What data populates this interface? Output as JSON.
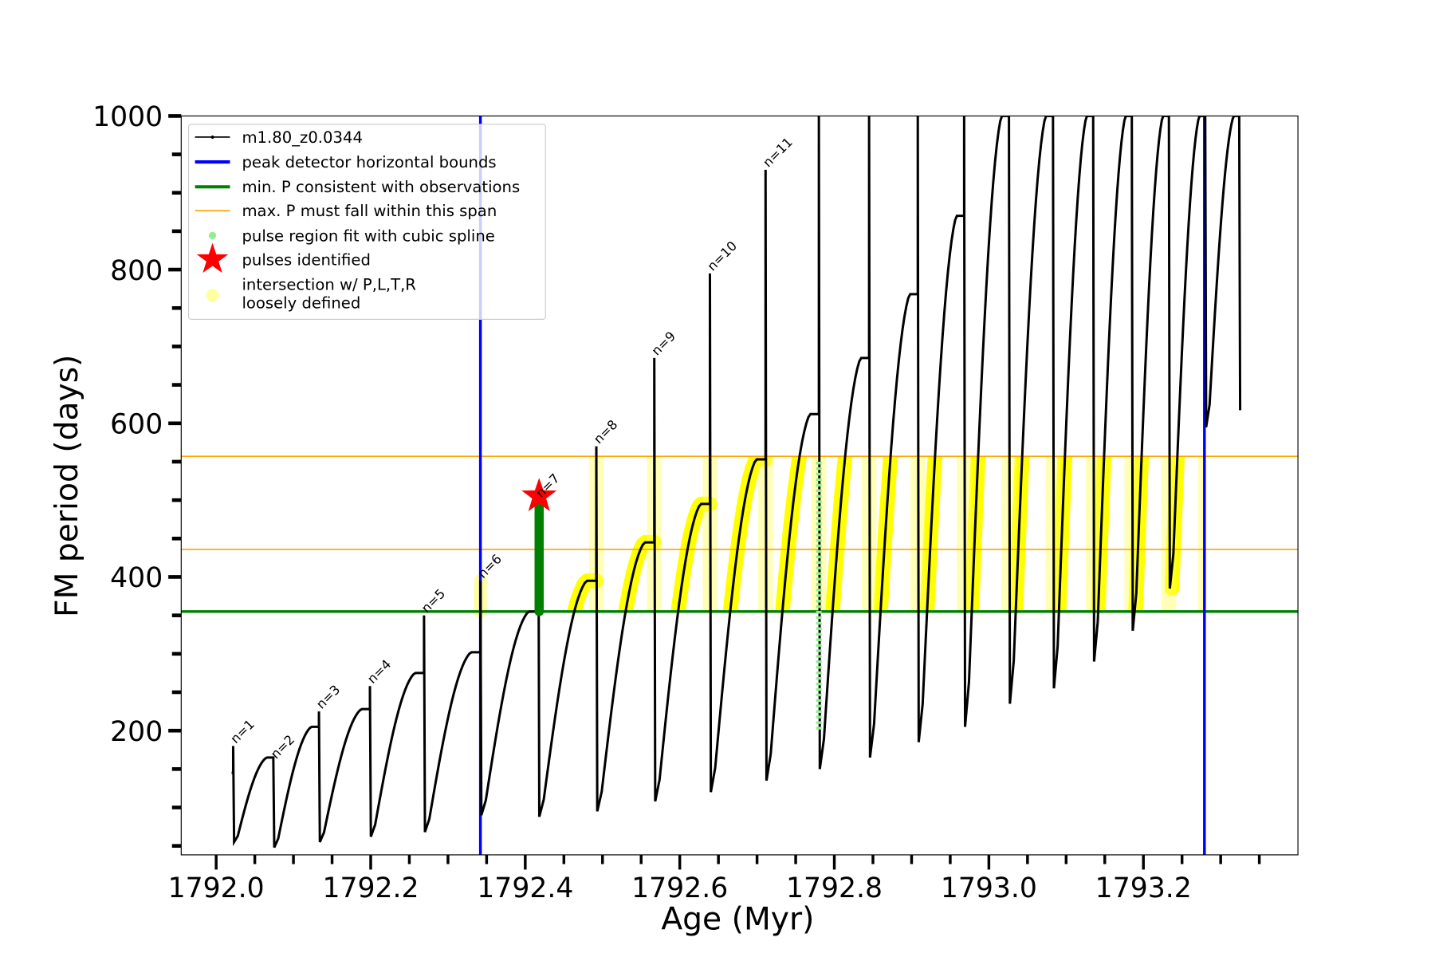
{
  "chart_data": {
    "type": "line",
    "title": "",
    "xlabel": "Age (Myr)",
    "ylabel": "FM period (days)",
    "xlim": [
      1791.955,
      1793.4
    ],
    "ylim": [
      38,
      1000
    ],
    "xticks": [
      "1792.0",
      "1792.2",
      "1792.4",
      "1792.6",
      "1792.8",
      "1793.0",
      "1793.2"
    ],
    "xtick_values": [
      1792.0,
      1792.2,
      1792.4,
      1792.6,
      1792.8,
      1793.0,
      1793.2
    ],
    "yticks": [
      "200",
      "400",
      "600",
      "800",
      "1000"
    ],
    "ytick_values": [
      200,
      400,
      600,
      800,
      1000
    ],
    "grid": false,
    "legend_placement": "top-left",
    "legend": [
      {
        "label": "m1.80_z0.0344",
        "color": "#000000",
        "kind": "line-marker"
      },
      {
        "label": "peak detector horizontal bounds",
        "color": "#0000ff",
        "kind": "thick-line"
      },
      {
        "label": "min. P consistent with observations",
        "color": "#008000",
        "kind": "thick-line"
      },
      {
        "label": "max. P must fall within this span",
        "color": "#ffa500",
        "kind": "thin-line"
      },
      {
        "label": "pulse region fit with cubic spline",
        "color": "#90ee90",
        "kind": "dot"
      },
      {
        "label": "pulses identified",
        "color": "#ff0000",
        "kind": "star"
      },
      {
        "label": "intersection w/ P,L,T,R",
        "label2": "loosely defined",
        "color": "#ffffa0",
        "kind": "circle"
      }
    ],
    "series_name": "m1.80_z0.0344",
    "start": {
      "age": 1792.02,
      "period": 145
    },
    "pulses": [
      {
        "age": 1792.022,
        "peak": 145,
        "spike": 180,
        "min": 55,
        "label": "n=1"
      },
      {
        "age": 1792.074,
        "peak": 165,
        "spike": 160,
        "min": 48,
        "label": "n=2"
      },
      {
        "age": 1792.133,
        "peak": 205,
        "spike": 225,
        "min": 55,
        "label": "n=3"
      },
      {
        "age": 1792.199,
        "peak": 228,
        "spike": 258,
        "min": 62,
        "label": "n=4"
      },
      {
        "age": 1792.269,
        "peak": 275,
        "spike": 350,
        "min": 68,
        "label": "n=5"
      },
      {
        "age": 1792.342,
        "peak": 302,
        "spike": 395,
        "min": 90,
        "label": "n=6"
      },
      {
        "age": 1792.417,
        "peak": 355,
        "spike": 500,
        "min": 88,
        "label": "n=7"
      },
      {
        "age": 1792.492,
        "peak": 395,
        "spike": 570,
        "min": 95,
        "label": "n=8"
      },
      {
        "age": 1792.567,
        "peak": 445,
        "spike": 685,
        "min": 108,
        "label": "n=9"
      },
      {
        "age": 1792.639,
        "peak": 495,
        "spike": 795,
        "min": 120,
        "label": "n=10"
      },
      {
        "age": 1792.711,
        "peak": 553,
        "spike": 930,
        "min": 135,
        "label": "n=11"
      },
      {
        "age": 1792.78,
        "peak": 612,
        "spike": 1000,
        "min": 150,
        "label": ""
      },
      {
        "age": 1792.845,
        "peak": 685,
        "spike": 1000,
        "min": 165,
        "label": ""
      },
      {
        "age": 1792.908,
        "peak": 768,
        "spike": 1000,
        "min": 185,
        "label": ""
      },
      {
        "age": 1792.968,
        "peak": 870,
        "spike": 1000,
        "min": 205,
        "label": ""
      },
      {
        "age": 1793.026,
        "peak": 1000,
        "spike": 1000,
        "min": 235,
        "label": ""
      },
      {
        "age": 1793.083,
        "peak": 1000,
        "spike": 1000,
        "min": 255,
        "label": ""
      },
      {
        "age": 1793.135,
        "peak": 1000,
        "spike": 1000,
        "min": 290,
        "label": ""
      },
      {
        "age": 1793.185,
        "peak": 1000,
        "spike": 1000,
        "min": 330,
        "label": ""
      },
      {
        "age": 1793.233,
        "peak": 1000,
        "spike": 1000,
        "min": 385,
        "label": ""
      },
      {
        "age": 1793.28,
        "peak": 1000,
        "spike": 1000,
        "min": 595,
        "label": ""
      },
      {
        "age": 1793.324,
        "peak": 1000,
        "spike": 1000,
        "min": 617,
        "label": ""
      }
    ],
    "vertical_bounds": [
      1792.342,
      1793.279
    ],
    "min_P_line": 355,
    "max_P_span": [
      436,
      557
    ],
    "identified_pulse": {
      "age": 1792.418,
      "period": 505
    },
    "green_fit": {
      "age": 1792.418,
      "from": 355,
      "to": 500
    },
    "light_green_fit": {
      "age": 1792.78,
      "from": 200,
      "to": 550
    }
  }
}
